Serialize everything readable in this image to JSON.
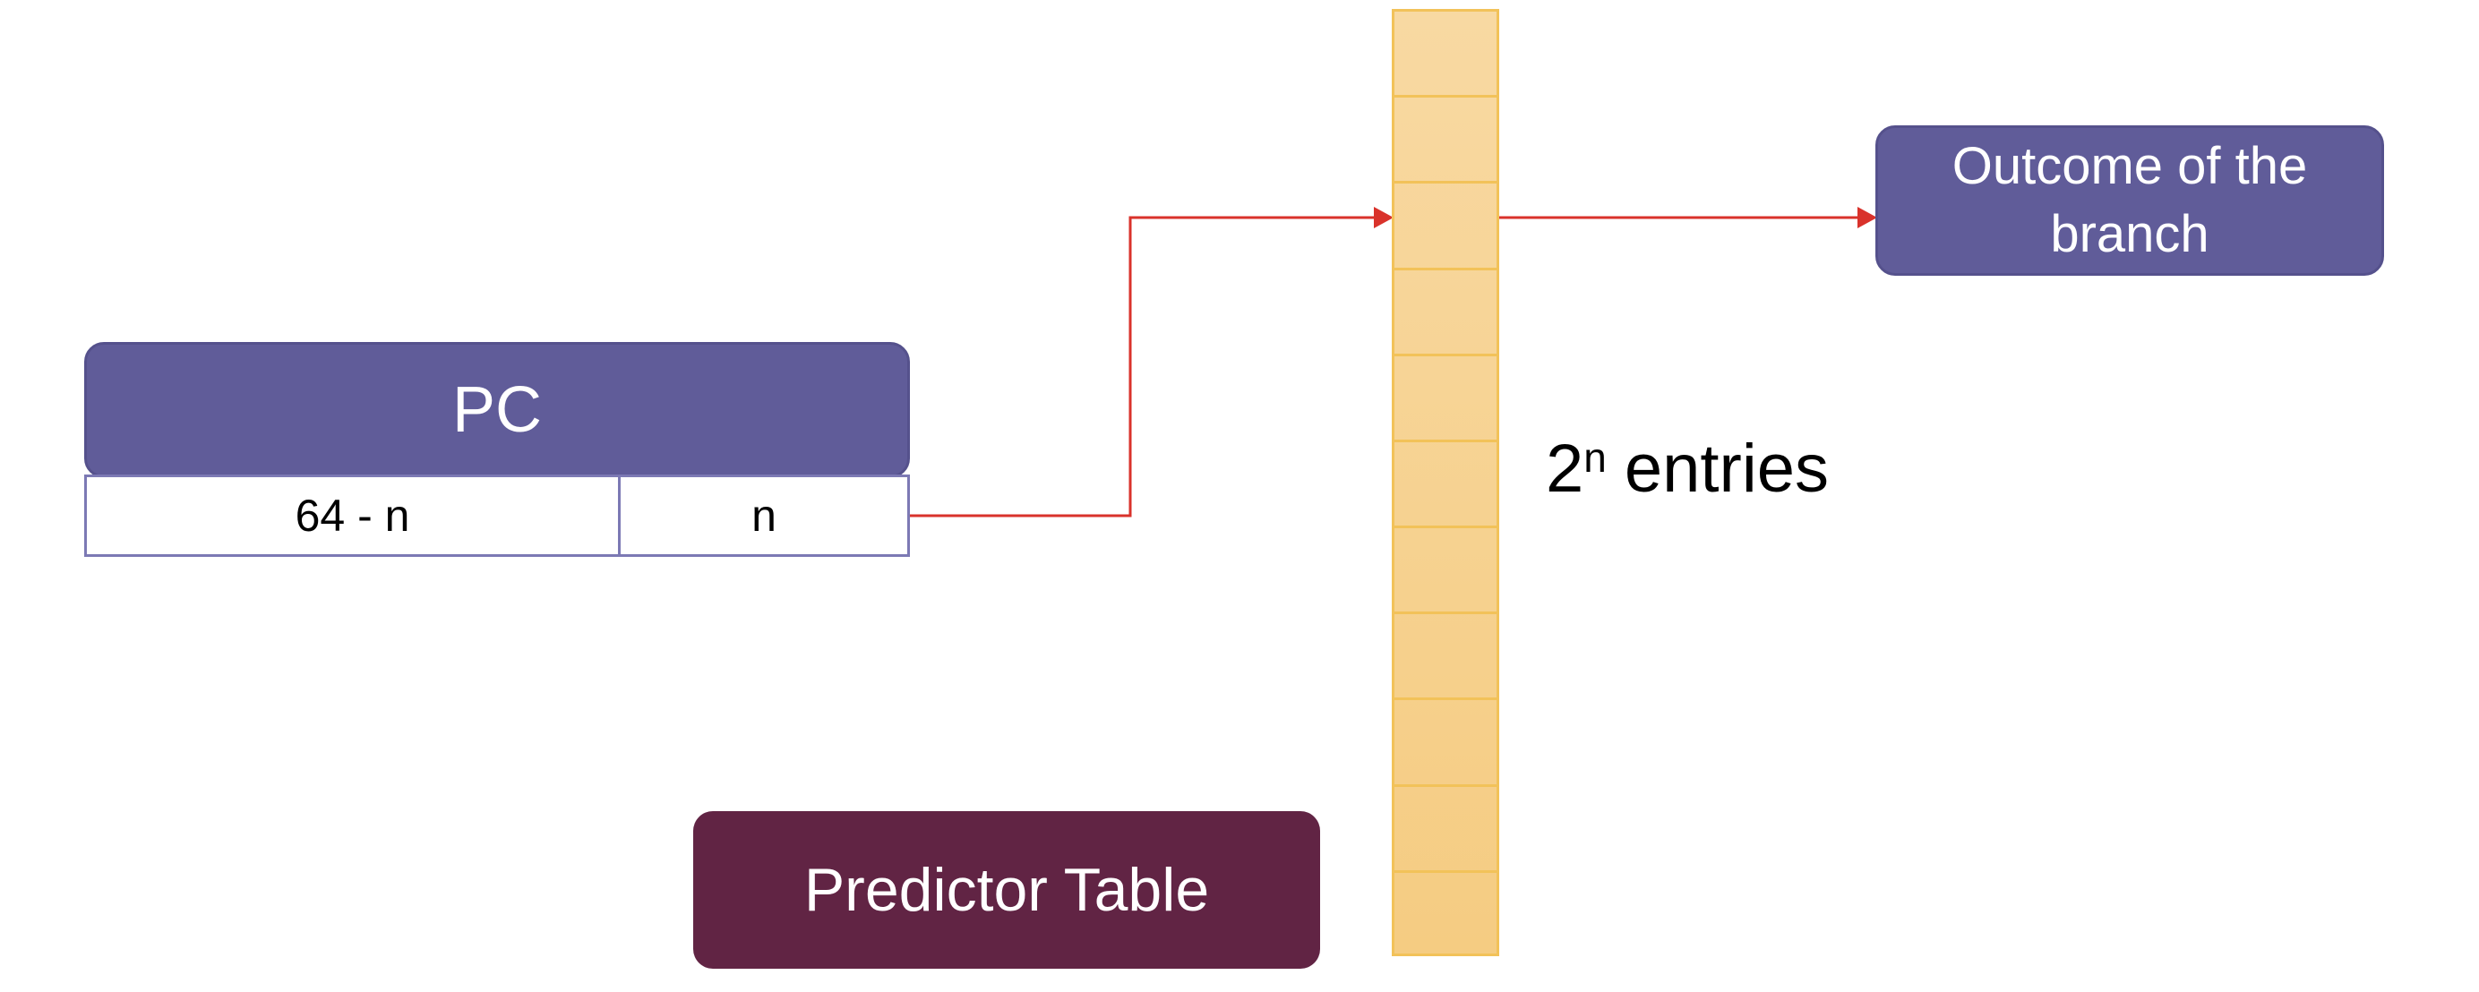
{
  "pc": {
    "label": "PC",
    "high_field": "64 - n",
    "low_field": "n"
  },
  "predictor": {
    "entries_base": "2",
    "entries_exp": "n",
    "entries_suffix": "entries",
    "entry_count": 11
  },
  "outcome": {
    "label": "Outcome of the branch"
  },
  "title": {
    "label": "Predictor Table"
  },
  "colors": {
    "box_purple": "#605c99",
    "title_maroon": "#612444",
    "table_fill": "#f6d190",
    "table_border": "#f2c259",
    "connector_red": "#d9322b"
  }
}
